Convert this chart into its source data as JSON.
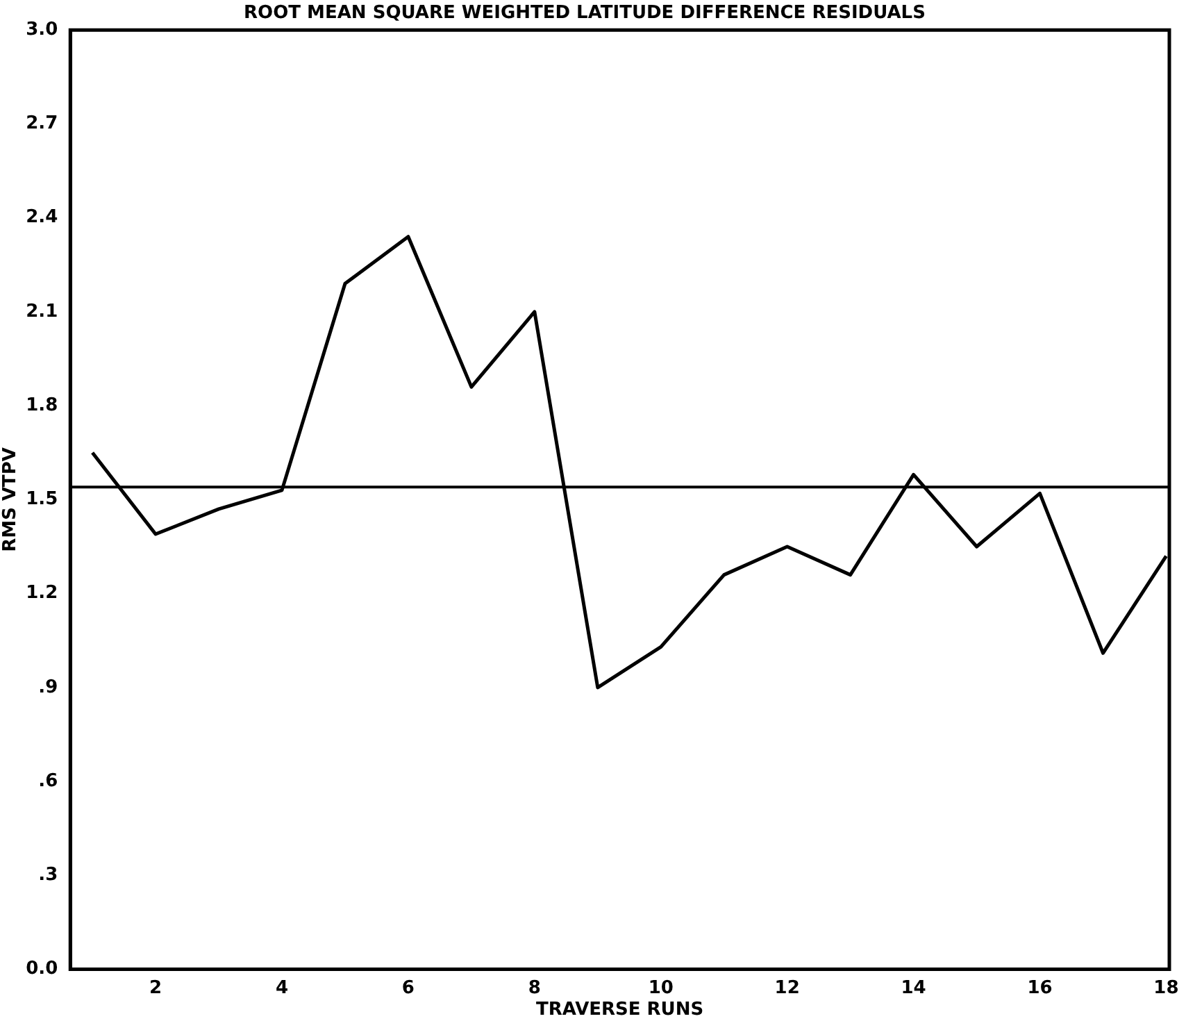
{
  "chart_data": {
    "type": "line",
    "title": "ROOT MEAN SQUARE WEIGHTED LATITUDE DIFFERENCE RESIDUALS",
    "xlabel": "TRAVERSE RUNS",
    "ylabel": "RMS VTPV",
    "x": [
      1,
      2,
      3,
      4,
      5,
      6,
      7,
      8,
      9,
      10,
      11,
      12,
      13,
      14,
      15,
      16,
      17,
      18
    ],
    "series": [
      {
        "color": "#000000",
        "values": [
          1.65,
          1.39,
          1.47,
          1.53,
          2.19,
          2.34,
          1.86,
          2.1,
          0.9,
          1.03,
          1.26,
          1.35,
          1.26,
          1.58,
          1.35,
          1.52,
          1.01,
          1.32
        ]
      }
    ],
    "xlim": [
      0.65,
      18.05
    ],
    "xticks": [
      2,
      4,
      6,
      8,
      10,
      12,
      14,
      16,
      18
    ],
    "ylim": [
      0,
      3
    ],
    "yticks": [
      {
        "value": 0,
        "label": "0.0"
      },
      {
        "value": 0.3,
        "label": ".3"
      },
      {
        "value": 0.6,
        "label": ".6"
      },
      {
        "value": 0.9,
        "label": ".9"
      },
      1.2,
      1.5,
      1.8,
      2.1,
      2.4,
      2.7,
      {
        "value": 3,
        "label": "3.0"
      }
    ],
    "ref_lines": [
      {
        "axis": "y",
        "value": 1.54
      }
    ],
    "grid": false,
    "legend": false,
    "marker": "none",
    "line_style": "solid"
  }
}
